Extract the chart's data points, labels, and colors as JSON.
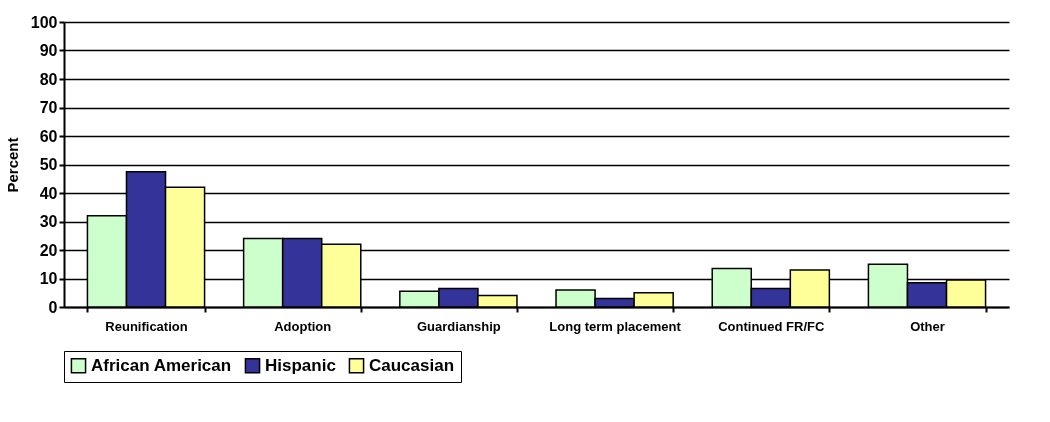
{
  "chart_data": {
    "type": "bar",
    "ylabel": "Percent",
    "categories": [
      "Reunification",
      "Adoption",
      "Guardianship",
      "Long term placement",
      "Continued FR/FC",
      "Other"
    ],
    "series": [
      {
        "name": "African American",
        "color": "#ccffcc",
        "values": [
          32,
          24,
          5.5,
          6,
          13.5,
          15
        ]
      },
      {
        "name": "Hispanic",
        "color": "#333399",
        "values": [
          47.5,
          24,
          6.5,
          3,
          6.5,
          8.5
        ]
      },
      {
        "name": "Caucasian",
        "color": "#ffff99",
        "values": [
          42,
          22,
          4,
          5,
          13,
          9.5
        ]
      }
    ],
    "ylim": [
      0,
      100
    ],
    "yticks": [
      0,
      10,
      20,
      30,
      40,
      50,
      60,
      70,
      80,
      90,
      100
    ],
    "grid": "y",
    "legend": "bottom"
  }
}
